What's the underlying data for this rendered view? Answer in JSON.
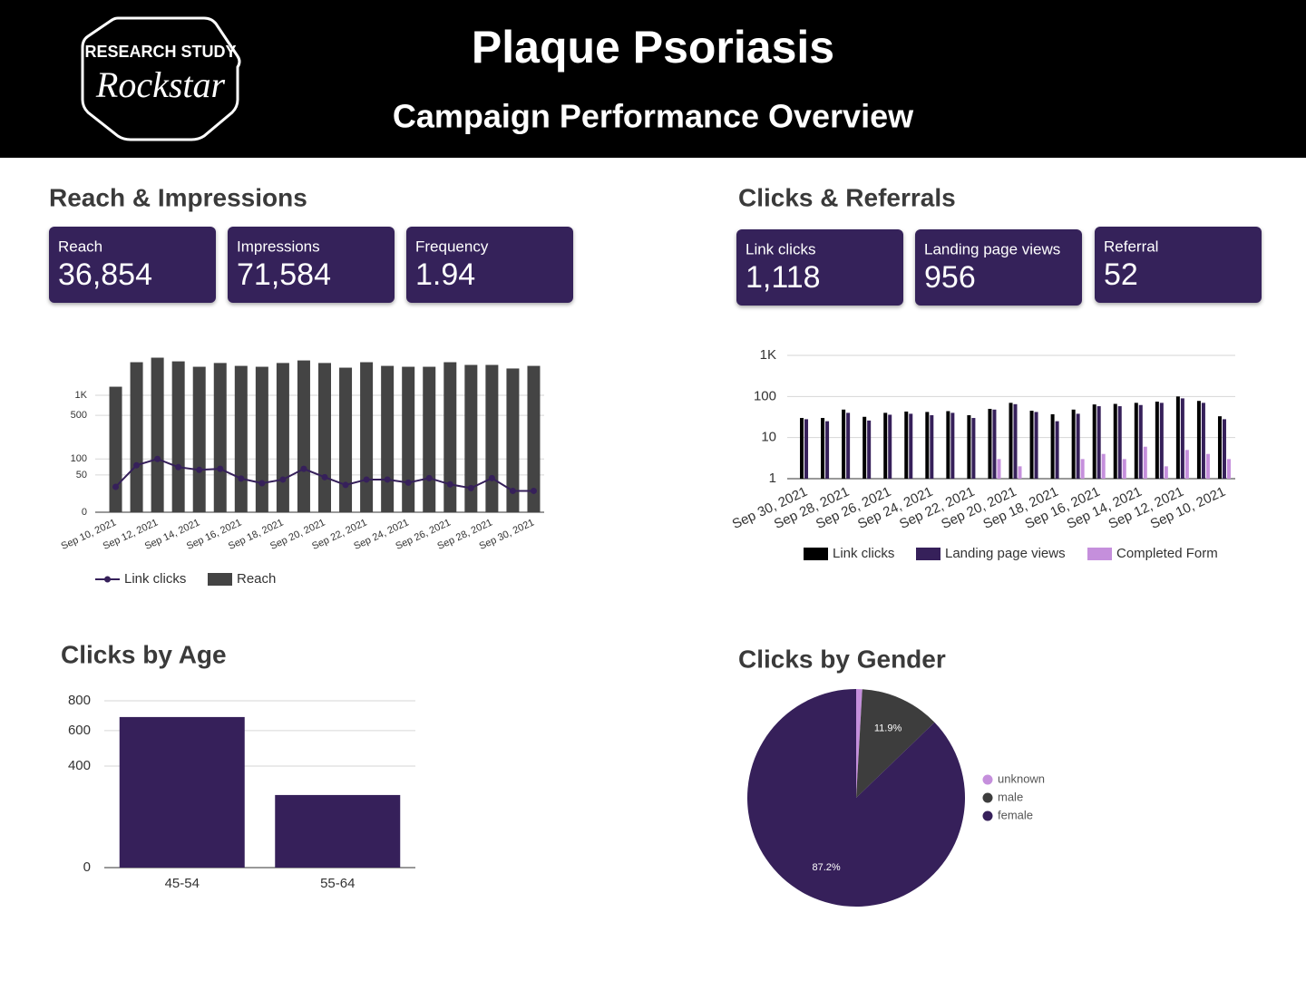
{
  "header": {
    "logo_line1": "RESEARCH STUDY",
    "logo_line2": "Rockstar",
    "title": "Plaque Psoriasis",
    "subtitle": "Campaign Performance Overview"
  },
  "sections": [
    "Reach & Impressions",
    "Clicks & Referrals",
    "Clicks by Age",
    "Clicks by Gender"
  ],
  "kpis": [
    {
      "label": "Reach",
      "value": "36,854"
    },
    {
      "label": "Impressions",
      "value": "71,584"
    },
    {
      "label": "Frequency",
      "value": "1.94"
    },
    {
      "label": "Link clicks",
      "value": "1,118"
    },
    {
      "label": "Landing page views",
      "value": "956"
    },
    {
      "label": "Referral",
      "value": "52"
    }
  ],
  "chart_data": [
    {
      "type": "bar",
      "yscale": "symlog",
      "categories": [
        "Sep 10, 2021",
        null,
        "Sep 12, 2021",
        null,
        "Sep 14, 2021",
        null,
        "Sep 16, 2021",
        null,
        "Sep 18, 2021",
        null,
        "Sep 20, 2021",
        null,
        "Sep 22, 2021",
        null,
        "Sep 24, 2021",
        null,
        "Sep 26, 2021",
        null,
        "Sep 28, 2021",
        null,
        "Sep 30, 2021"
      ],
      "series": [
        {
          "name": "Link clicks",
          "type": "line",
          "color": "#36205a",
          "values": [
            27,
            77,
            100,
            71,
            63,
            66,
            42,
            33,
            40,
            66,
            45,
            30,
            40,
            40,
            34,
            43,
            31,
            25,
            43,
            21,
            21
          ]
        },
        {
          "name": "Reach",
          "type": "bar",
          "color": "#444444",
          "values": [
            1340,
            3080,
            3590,
            3170,
            2640,
            3000,
            2720,
            2640,
            3000,
            3270,
            3000,
            2560,
            3080,
            2720,
            2640,
            2640,
            3080,
            2810,
            2810,
            2490,
            2720
          ]
        }
      ],
      "ylim": [
        0,
        4000
      ],
      "yticks": [
        0,
        50,
        100,
        500,
        {
          "value": 1000,
          "label": "1K"
        }
      ],
      "grid": true
    },
    {
      "type": "bar",
      "yscale": "log",
      "categories": [
        "Sep 30, 2021",
        null,
        "Sep 28, 2021",
        null,
        "Sep 26, 2021",
        null,
        "Sep 24, 2021",
        null,
        "Sep 22, 2021",
        null,
        "Sep 20, 2021",
        null,
        "Sep 18, 2021",
        null,
        "Sep 16, 2021",
        null,
        "Sep 14, 2021",
        null,
        "Sep 12, 2021",
        null,
        "Sep 10, 2021"
      ],
      "series": [
        {
          "name": "Link clicks",
          "type": "bar",
          "color": "#000000",
          "values": [
            30,
            30,
            48,
            32,
            40,
            43,
            42,
            44,
            35,
            50,
            70,
            45,
            37,
            48,
            64,
            66,
            70,
            75,
            100,
            78,
            33
          ]
        },
        {
          "name": "Landing page views",
          "type": "bar",
          "color": "#36205a",
          "values": [
            28,
            25,
            40,
            26,
            36,
            38,
            35,
            40,
            30,
            48,
            65,
            42,
            25,
            38,
            58,
            58,
            62,
            70,
            90,
            70,
            28
          ]
        },
        {
          "name": "Completed Form",
          "type": "bar",
          "color": "#c58fdc",
          "values": [
            null,
            null,
            null,
            null,
            null,
            null,
            null,
            null,
            null,
            3,
            2,
            null,
            null,
            3,
            4,
            3,
            6,
            2,
            5,
            4,
            3
          ]
        }
      ],
      "ylim": [
        1,
        1000
      ],
      "yticks": [
        1,
        10,
        100,
        {
          "value": 1000,
          "label": "1K"
        }
      ],
      "grid": true
    },
    {
      "type": "bar",
      "yscale": "symlog",
      "categories": [
        "45-54",
        "55-64"
      ],
      "values": [
        687,
        263
      ],
      "color": "#36205a",
      "ylim": [
        0,
        800
      ],
      "yticks": [
        0,
        400,
        600,
        800
      ],
      "grid": true
    },
    {
      "type": "pie",
      "categories": [
        "unknown",
        "male",
        "female"
      ],
      "values": [
        0.9,
        11.9,
        87.2
      ],
      "value_labels": [
        null,
        "11.9%",
        "87.2%"
      ],
      "colors": [
        "#c58fdc",
        "#3d3d3d",
        "#36205a"
      ]
    }
  ]
}
